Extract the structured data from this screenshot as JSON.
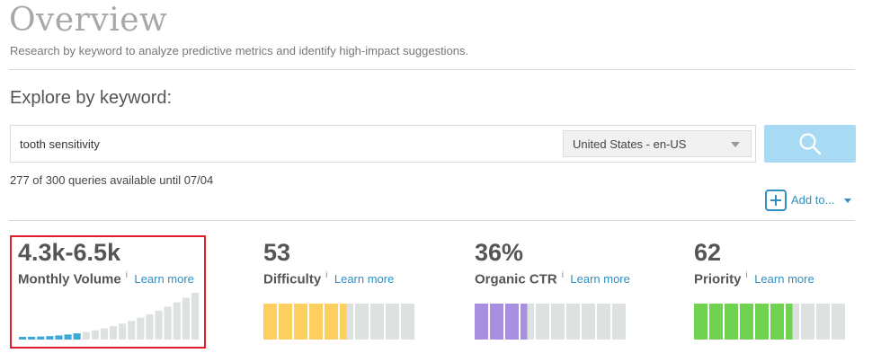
{
  "header": {
    "title": "Overview",
    "subtitle": "Research by keyword to analyze predictive metrics and identify high-impact suggestions."
  },
  "explore": {
    "heading": "Explore by keyword:",
    "query": "tooth sensitivity",
    "locale": "United States - en-US",
    "quota": "277 of 300 queries available until 07/04",
    "add_to_label": "Add to..."
  },
  "metrics": [
    {
      "value": "4.3k-6.5k",
      "label": "Monthly Volume",
      "info": "i",
      "learn": "Learn more",
      "highlighted": true
    },
    {
      "value": "53",
      "label": "Difficulty",
      "info": "i",
      "learn": "Learn more",
      "level": 0.53,
      "color": "#fccf60"
    },
    {
      "value": "36%",
      "label": "Organic CTR",
      "info": "i",
      "learn": "Learn more",
      "level": 0.36,
      "color": "#a88fe0"
    },
    {
      "value": "62",
      "label": "Priority",
      "info": "i",
      "learn": "Learn more",
      "level": 0.62,
      "color": "#6fd34f"
    }
  ],
  "volume_bars": {
    "total": 20,
    "filled": 7,
    "filled_color": "#3ea9d9",
    "empty_color": "#dde1e0"
  },
  "colors": {
    "accent": "#2f8fc3",
    "search_button": "#a9daf3",
    "highlight_border": "#e11d2a"
  },
  "icons": {
    "search": "search-icon",
    "add": "plus-icon",
    "dropdown": "caret-down-icon"
  }
}
